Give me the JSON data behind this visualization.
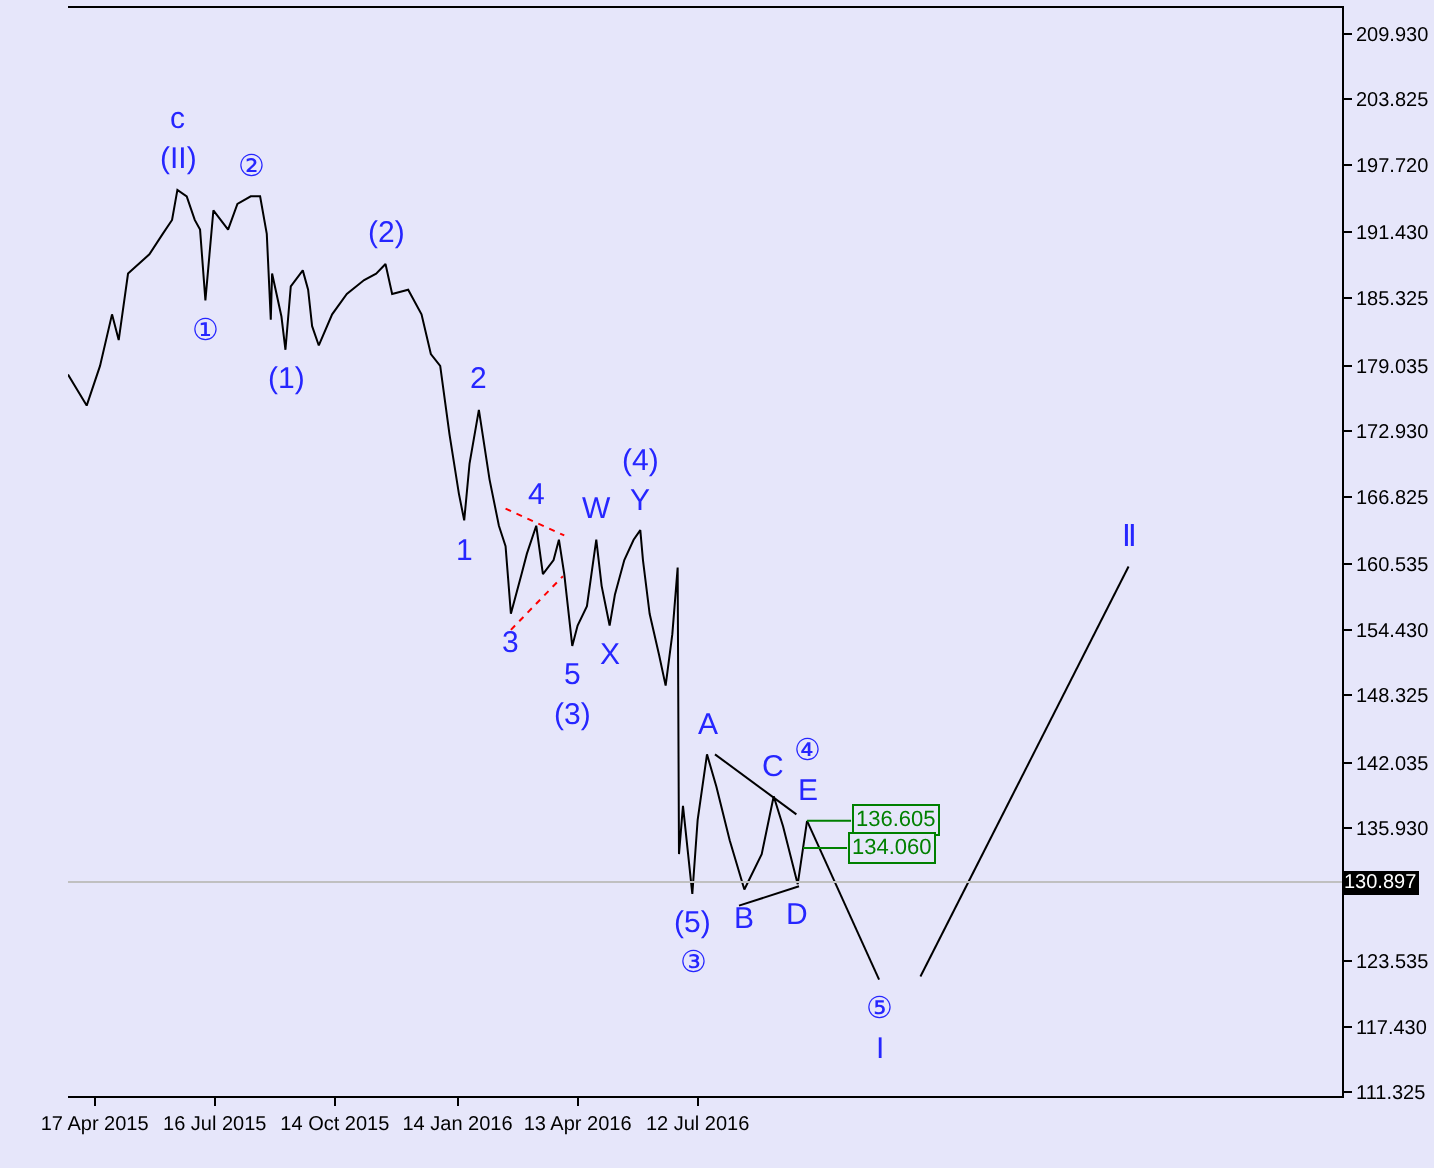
{
  "chart_data": {
    "type": "line",
    "xlim": [
      "2015-03-28",
      "2017-11-07"
    ],
    "ylim": [
      110.96,
      212.35
    ],
    "xticks": [
      {
        "value": "2015-04-17",
        "label": "17 Apr 2015"
      },
      {
        "value": "2015-07-16",
        "label": "16 Jul 2015"
      },
      {
        "value": "2015-10-14",
        "label": "14 Oct 2015"
      },
      {
        "value": "2016-01-14",
        "label": "14 Jan 2016"
      },
      {
        "value": "2016-04-13",
        "label": "13 Apr 2016"
      },
      {
        "value": "2016-07-12",
        "label": "12 Jul 2016"
      }
    ],
    "yticks": [
      {
        "value": 111.325,
        "label": "111.325"
      },
      {
        "value": 117.43,
        "label": "117.430"
      },
      {
        "value": 123.535,
        "label": "123.535"
      },
      {
        "value": 129.825,
        "label": null
      },
      {
        "value": 135.93,
        "label": "135.930"
      },
      {
        "value": 142.035,
        "label": "142.035"
      },
      {
        "value": 148.325,
        "label": "148.325"
      },
      {
        "value": 154.43,
        "label": "154.430"
      },
      {
        "value": 160.535,
        "label": "160.535"
      },
      {
        "value": 166.825,
        "label": "166.825"
      },
      {
        "value": 172.93,
        "label": "172.930"
      },
      {
        "value": 179.035,
        "label": "179.035"
      },
      {
        "value": 185.325,
        "label": "185.325"
      },
      {
        "value": 191.43,
        "label": "191.430"
      },
      {
        "value": 197.72,
        "label": "197.720"
      },
      {
        "value": 203.825,
        "label": "203.825"
      },
      {
        "value": 209.93,
        "label": "209.930"
      }
    ],
    "grid": false,
    "marker": "none",
    "line_style": "solid",
    "series": [
      {
        "color": "#000000",
        "x": [
          "2015-03-28",
          "2015-04-11",
          "2015-04-21",
          "2015-04-30",
          "2015-05-05",
          "2015-05-12",
          "2015-05-28",
          "2015-06-07",
          "2015-06-14",
          "2015-06-18",
          "2015-06-25",
          "2015-07-01",
          "2015-07-05",
          "2015-07-09",
          "2015-07-15",
          "2015-07-26",
          "2015-08-02",
          "2015-08-12",
          "2015-08-19",
          "2015-08-24",
          "2015-08-27",
          "2015-08-28",
          "2015-09-04",
          "2015-09-07",
          "2015-09-11",
          "2015-09-20",
          "2015-09-24",
          "2015-09-27",
          "2015-10-02",
          "2015-10-12",
          "2015-10-23",
          "2015-11-05",
          "2015-11-14",
          "2015-11-21",
          "2015-11-26",
          "2015-12-08",
          "2015-12-18",
          "2015-12-25",
          "2016-01-01",
          "2016-01-08",
          "2016-01-15",
          "2016-01-19",
          "2016-01-23",
          "2016-01-30",
          "2016-02-07",
          "2016-02-14",
          "2016-02-19",
          "2016-02-23",
          "2016-03-02",
          "2016-03-06",
          "2016-03-13",
          "2016-03-18",
          "2016-03-26",
          "2016-03-30",
          "2016-04-03",
          "2016-04-09",
          "2016-04-13",
          "2016-04-20",
          "2016-04-27",
          "2016-05-01",
          "2016-05-07",
          "2016-05-11",
          "2016-05-18",
          "2016-05-25",
          "2016-05-30",
          "2016-06-01",
          "2016-06-06",
          "2016-06-13",
          "2016-06-18",
          "2016-06-23",
          "2016-06-27",
          "2016-06-28",
          "2016-07-01",
          "2016-07-08",
          "2016-07-12",
          "2016-07-19",
          "2016-07-26",
          "2016-08-05",
          "2016-08-16",
          "2016-08-29",
          "2016-09-07",
          "2016-09-14",
          "2016-09-25",
          "2016-10-02"
        ],
        "values": [
          178.2,
          175.3,
          179.0,
          183.8,
          181.4,
          187.6,
          189.4,
          191.3,
          192.6,
          195.4,
          194.8,
          192.6,
          191.7,
          185.1,
          193.5,
          191.7,
          194.1,
          194.8,
          194.8,
          191.3,
          183.3,
          187.6,
          183.6,
          180.5,
          186.4,
          187.9,
          186.1,
          182.7,
          180.9,
          183.8,
          185.7,
          187.0,
          187.6,
          188.5,
          185.7,
          186.1,
          183.8,
          180.1,
          179.0,
          172.6,
          167.1,
          164.6,
          169.9,
          174.9,
          168.4,
          164.1,
          162.2,
          155.9,
          159.6,
          161.5,
          164.1,
          159.6,
          160.9,
          162.8,
          159.6,
          152.9,
          154.8,
          156.6,
          162.8,
          158.5,
          154.8,
          157.7,
          160.9,
          162.8,
          163.7,
          160.9,
          155.9,
          152.1,
          149.2,
          154.0,
          160.2,
          133.5,
          138.0,
          129.8,
          136.7,
          142.8,
          139.8,
          134.8,
          130.2,
          133.5,
          138.9,
          136.1,
          130.7,
          136.6
        ]
      },
      {
        "color": "#000000",
        "x": [
          "2016-10-02",
          "2016-11-25",
          "2016-12-10",
          "2016-12-26",
          "2017-05-31"
        ],
        "values": [
          136.6,
          121.8,
          null,
          122.1,
          160.3
        ]
      },
      {
        "color": "#000000",
        "x": [
          "2016-07-25",
          "2016-09-24"
        ],
        "values": [
          142.8,
          137.2
        ]
      },
      {
        "color": "#000000",
        "x": [
          "2016-08-12",
          "2016-09-26"
        ],
        "values": [
          128.7,
          130.5
        ]
      },
      {
        "color": "#ff0000",
        "line_style": "dotted",
        "x": [
          "2016-02-19",
          "2016-04-03"
        ],
        "values": [
          165.7,
          163.2
        ]
      },
      {
        "color": "#ff0000",
        "line_style": "dotted",
        "x": [
          "2016-02-23",
          "2016-04-02"
        ],
        "values": [
          154.4,
          159.4
        ]
      }
    ],
    "ref_lines": [
      {
        "axis": "y",
        "value": 130.897,
        "label": "130.897",
        "color": "#c0c0c0"
      }
    ],
    "annotations": [
      {
        "text": "(II)",
        "x": "2015-06-18",
        "y": 195.4
      },
      {
        "text": "c",
        "x": "2015-06-18",
        "y": 195.4
      },
      {
        "text": "①",
        "x": "2015-07-09",
        "y": 185.1
      },
      {
        "text": "②",
        "x": "2015-08-12",
        "y": 194.8
      },
      {
        "text": "(1)",
        "x": "2015-09-07",
        "y": 180.5
      },
      {
        "text": "(2)",
        "x": "2015-11-21",
        "y": 188.5
      },
      {
        "text": "1",
        "x": "2016-01-19",
        "y": 164.6
      },
      {
        "text": "2",
        "x": "2016-01-30",
        "y": 174.9
      },
      {
        "text": "3",
        "x": "2016-02-23",
        "y": 155.9
      },
      {
        "text": "4",
        "x": "2016-03-13",
        "y": 164.1
      },
      {
        "text": "5",
        "x": "2016-04-09",
        "y": 152.9
      },
      {
        "text": "(3)",
        "x": "2016-04-09",
        "y": 152.9
      },
      {
        "text": "W",
        "x": "2016-04-27",
        "y": 162.8
      },
      {
        "text": "X",
        "x": "2016-05-07",
        "y": 154.8
      },
      {
        "text": "Y",
        "x": "2016-05-30",
        "y": 163.7
      },
      {
        "text": "(4)",
        "x": "2016-05-30",
        "y": 163.7
      },
      {
        "text": "(5)",
        "x": "2016-07-08",
        "y": 129.8
      },
      {
        "text": "③",
        "x": "2016-07-08",
        "y": 129.8
      },
      {
        "text": "A",
        "x": "2016-07-19",
        "y": 142.8
      },
      {
        "text": "B",
        "x": "2016-08-16",
        "y": 130.2
      },
      {
        "text": "C",
        "x": "2016-09-07",
        "y": 138.9
      },
      {
        "text": "D",
        "x": "2016-09-25",
        "y": 130.7
      },
      {
        "text": "E",
        "x": "2016-10-02",
        "y": 136.6
      },
      {
        "text": "④",
        "x": "2016-10-02",
        "y": 136.6
      },
      {
        "text": "⑤",
        "x": "2016-11-25",
        "y": 121.8
      },
      {
        "text": "I",
        "x": "2016-11-25",
        "y": 121.8
      },
      {
        "text": "Ⅱ",
        "x": "2017-05-31",
        "y": 160.3
      },
      {
        "text": "136.605",
        "x": "2016-10-02",
        "y": 136.605
      },
      {
        "text": "134.060",
        "x": "2016-09-29",
        "y": 134.06
      }
    ]
  }
}
